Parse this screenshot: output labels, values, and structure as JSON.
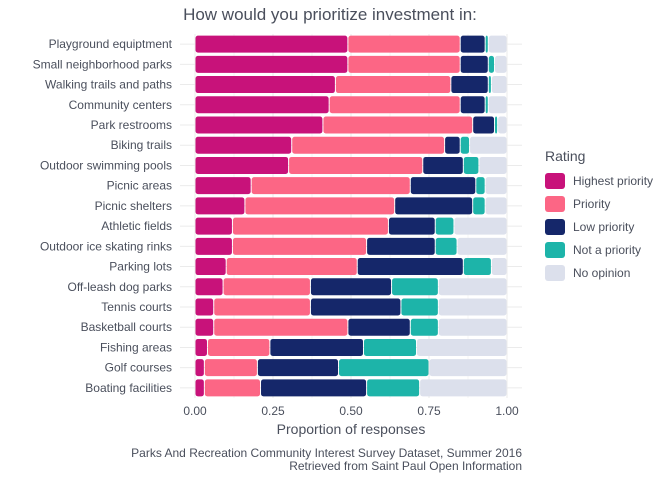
{
  "chart_data": {
    "type": "bar",
    "orientation": "horizontal",
    "stacked": true,
    "title": "How would you prioritize investment in:",
    "xlabel": "Proportion of responses",
    "ylabel": "",
    "xlim": [
      0,
      1
    ],
    "xticks": [
      0,
      0.25,
      0.5,
      0.75,
      1
    ],
    "xtick_labels": [
      "0.00",
      "0.25",
      "0.50",
      "0.75",
      "1.00"
    ],
    "grid": true,
    "legend_title": "Rating",
    "legend_position": "right",
    "categories": [
      "Playground equiptment",
      "Small neighborhood parks",
      "Walking trails and paths",
      "Community centers",
      "Park restrooms",
      "Biking trails",
      "Outdoor swimming pools",
      "Picnic areas",
      "Picnic shelters",
      "Athletic fields",
      "Outdoor ice skating rinks",
      "Parking lots",
      "Off-leash dog parks",
      "Tennis courts",
      "Basketball courts",
      "Fishing areas",
      "Golf courses",
      "Boating facilities"
    ],
    "series": [
      {
        "name": "Highest priority",
        "color": "#c8127a",
        "values": [
          0.49,
          0.49,
          0.45,
          0.43,
          0.41,
          0.31,
          0.3,
          0.18,
          0.16,
          0.12,
          0.12,
          0.1,
          0.09,
          0.06,
          0.06,
          0.04,
          0.03,
          0.03
        ]
      },
      {
        "name": "Priority",
        "color": "#fc6685",
        "values": [
          0.36,
          0.36,
          0.37,
          0.42,
          0.48,
          0.49,
          0.43,
          0.51,
          0.48,
          0.5,
          0.43,
          0.42,
          0.28,
          0.31,
          0.43,
          0.2,
          0.17,
          0.18
        ]
      },
      {
        "name": "Low priority",
        "color": "#15276a",
        "values": [
          0.08,
          0.09,
          0.12,
          0.08,
          0.07,
          0.05,
          0.13,
          0.21,
          0.25,
          0.15,
          0.22,
          0.34,
          0.26,
          0.29,
          0.2,
          0.3,
          0.26,
          0.34
        ]
      },
      {
        "name": "Not a priority",
        "color": "#1db4a9",
        "values": [
          0.01,
          0.02,
          0.01,
          0.01,
          0.01,
          0.03,
          0.05,
          0.03,
          0.04,
          0.06,
          0.07,
          0.09,
          0.15,
          0.12,
          0.09,
          0.17,
          0.29,
          0.17
        ]
      },
      {
        "name": "No opinion",
        "color": "#dce0ec",
        "values": [
          0.06,
          0.04,
          0.05,
          0.06,
          0.03,
          0.12,
          0.09,
          0.07,
          0.07,
          0.17,
          0.16,
          0.05,
          0.22,
          0.22,
          0.22,
          0.29,
          0.25,
          0.28
        ]
      }
    ]
  },
  "caption": {
    "line1": "Parks And Recreation Community Interest Survey Dataset, Summer 2016",
    "line2": "Retrieved from Saint Paul Open Information"
  }
}
